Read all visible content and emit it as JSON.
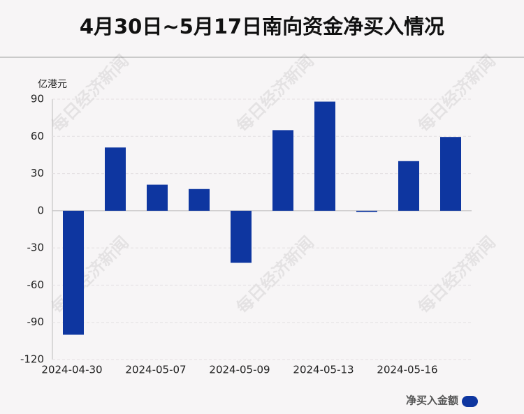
{
  "chart_data": {
    "type": "bar",
    "title": "4月30日~5月17日南向资金净买入情况",
    "y_label": "亿港元",
    "watermark": "每日经济新闻",
    "categories": [
      "2024-04-30",
      null,
      "2024-05-07",
      null,
      "2024-05-09",
      null,
      "2024-05-13",
      null,
      "2024-05-16",
      null
    ],
    "series": [
      {
        "name": "净买入金额",
        "color": "#0e36a0",
        "values": [
          -100,
          51,
          21,
          17.5,
          -42,
          65,
          88,
          -1,
          40,
          59.5
        ]
      }
    ],
    "ylim": [
      -120,
      90
    ],
    "yticks": [
      -120,
      -90,
      -60,
      -30,
      0,
      30,
      60,
      90
    ],
    "grid": true,
    "legend": "bottom-right"
  }
}
